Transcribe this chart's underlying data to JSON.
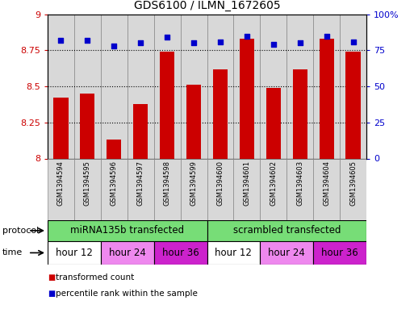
{
  "title": "GDS6100 / ILMN_1672605",
  "samples": [
    "GSM1394594",
    "GSM1394595",
    "GSM1394596",
    "GSM1394597",
    "GSM1394598",
    "GSM1394599",
    "GSM1394600",
    "GSM1394601",
    "GSM1394602",
    "GSM1394603",
    "GSM1394604",
    "GSM1394605"
  ],
  "bar_values": [
    8.42,
    8.45,
    8.13,
    8.38,
    8.74,
    8.51,
    8.62,
    8.83,
    8.49,
    8.62,
    8.83,
    8.74
  ],
  "dot_values": [
    82,
    82,
    78,
    80,
    84,
    80,
    81,
    85,
    79,
    80,
    85,
    81
  ],
  "bar_color": "#cc0000",
  "dot_color": "#0000cc",
  "ylim_left": [
    8.0,
    9.0
  ],
  "ylim_right": [
    0,
    100
  ],
  "yticks_left": [
    8.0,
    8.25,
    8.5,
    8.75,
    9.0
  ],
  "ytick_labels_left": [
    "8",
    "8.25",
    "8.5",
    "8.75",
    "9"
  ],
  "yticks_right": [
    0,
    25,
    50,
    75,
    100
  ],
  "ytick_labels_right": [
    "0",
    "25",
    "50",
    "75",
    "100%"
  ],
  "protocol_labels": [
    "miRNA135b transfected",
    "scrambled transfected"
  ],
  "protocol_color": "#77dd77",
  "time_labels": [
    "hour 12",
    "hour 24",
    "hour 36",
    "hour 12",
    "hour 24",
    "hour 36"
  ],
  "time_colors": [
    "#ffffff",
    "#ee88ee",
    "#cc22cc",
    "#ffffff",
    "#ee88ee",
    "#cc22cc"
  ],
  "legend_bar_label": "transformed count",
  "legend_dot_label": "percentile rank within the sample",
  "sample_bg_color": "#d8d8d8",
  "xlabel_protocol": "protocol",
  "xlabel_time": "time"
}
